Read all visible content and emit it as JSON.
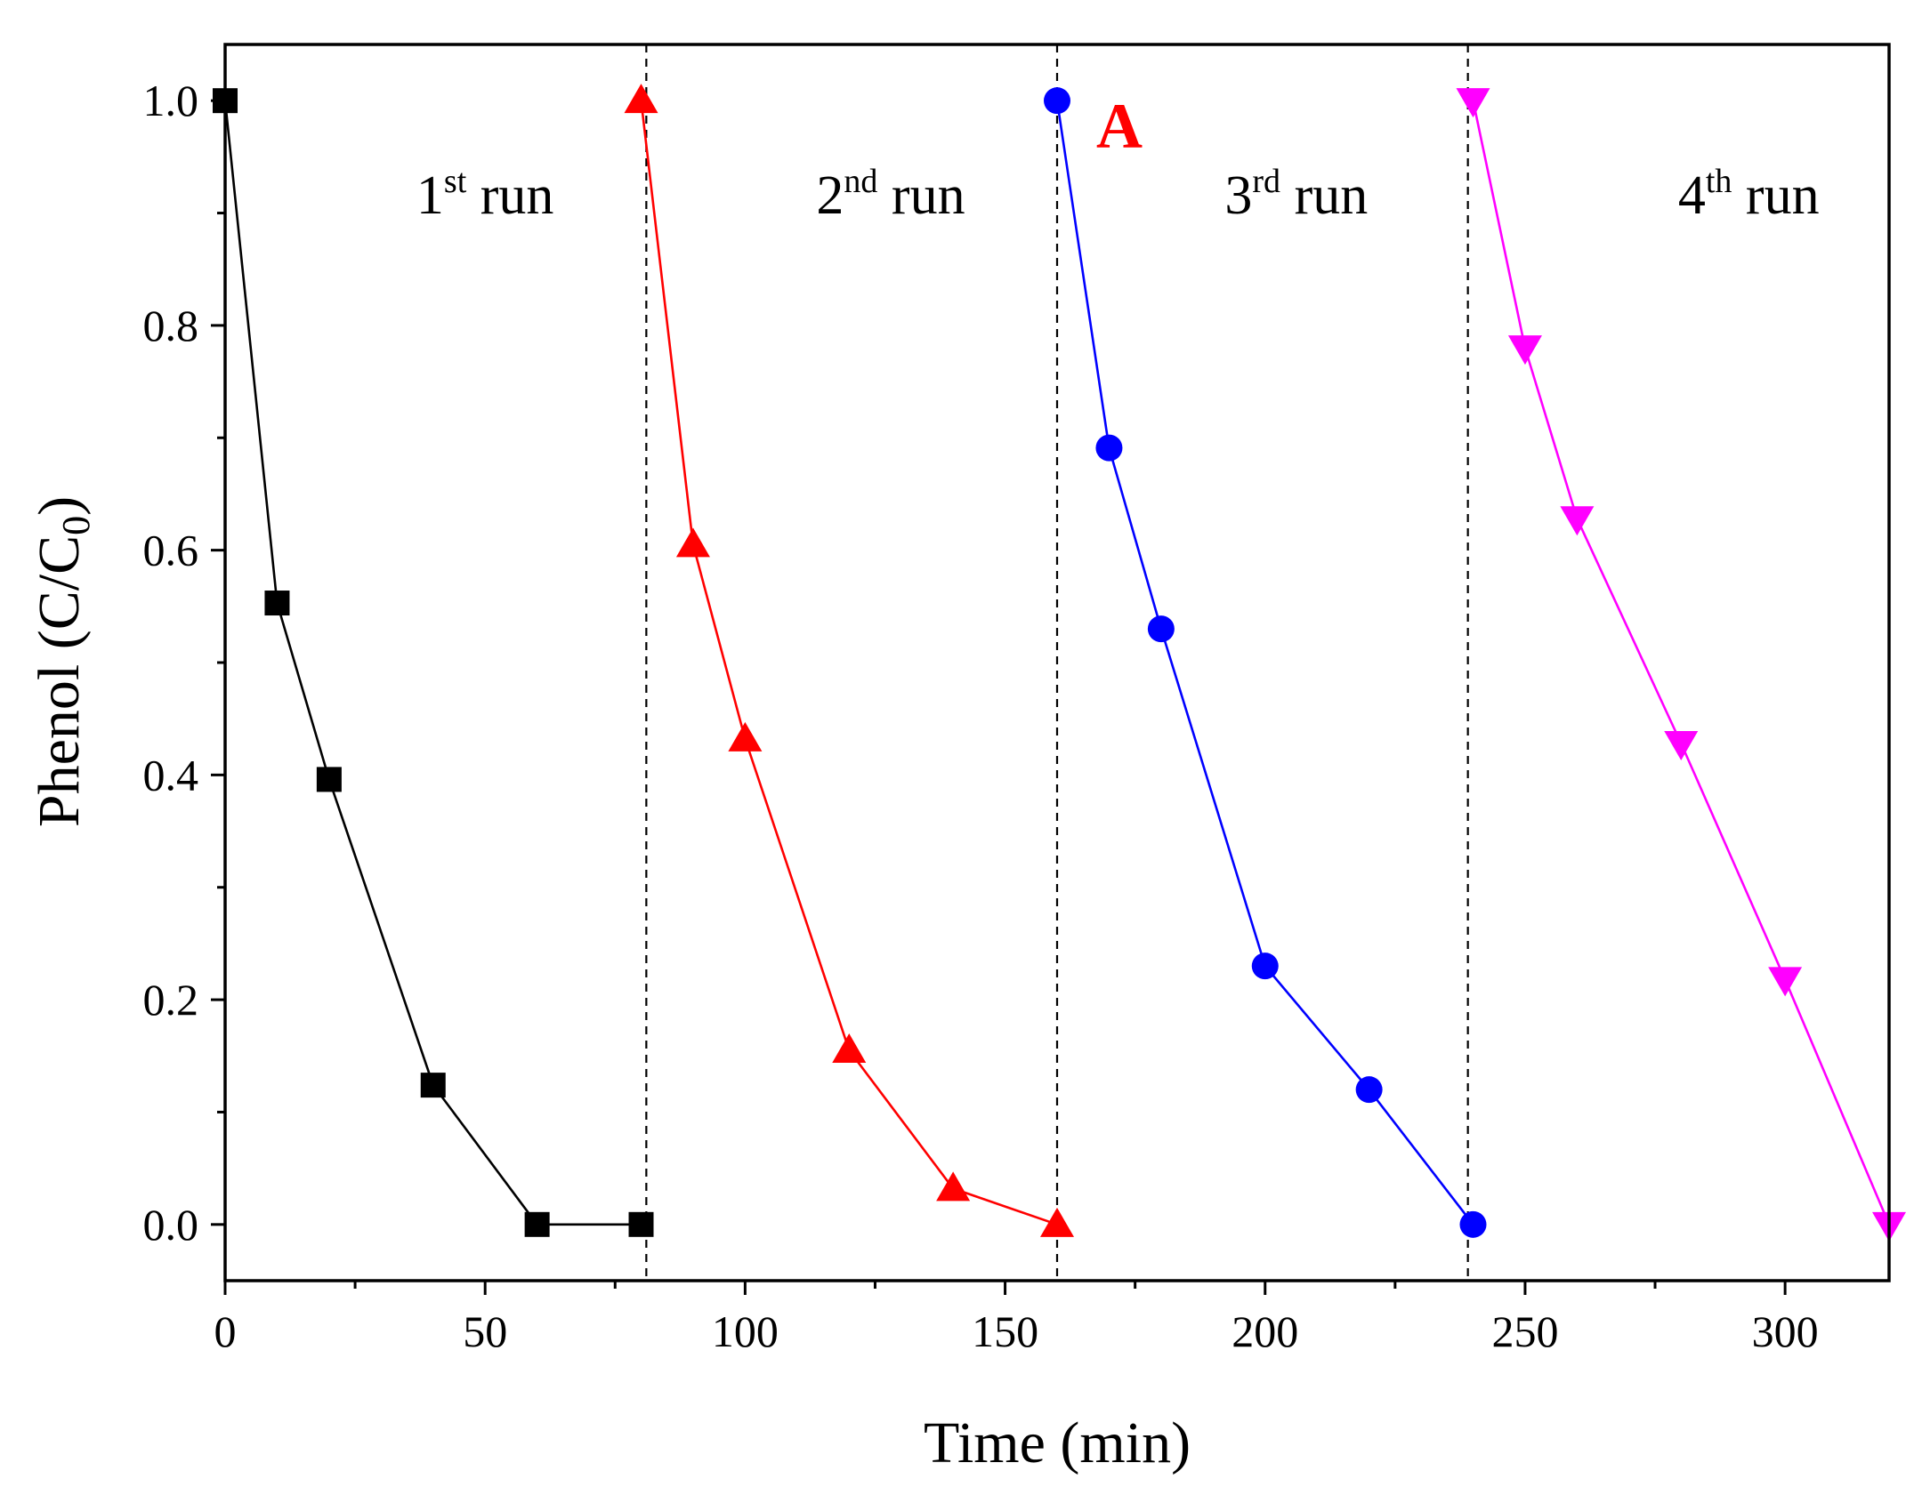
{
  "chart_data": {
    "type": "line",
    "title": "",
    "panel_label": "A",
    "xlabel": "Time (min)",
    "ylabel": {
      "main": "Phenol (C/C",
      "sub": "0",
      "close": ")"
    },
    "xlim": [
      0,
      320
    ],
    "ylim": [
      -0.05,
      1.05
    ],
    "x_ticks": [
      0,
      50,
      100,
      150,
      200,
      250,
      300
    ],
    "x_tick_labels": [
      "0",
      "50",
      "100",
      "150",
      "200",
      "250",
      "300"
    ],
    "x_minor_ticks": [
      25,
      75,
      125,
      175,
      225,
      275
    ],
    "y_ticks": [
      0.0,
      0.2,
      0.4,
      0.6,
      0.8,
      1.0
    ],
    "y_tick_labels": [
      "0.0",
      "0.2",
      "0.4",
      "0.6",
      "0.8",
      "1.0"
    ],
    "y_minor_ticks": [
      0.1,
      0.3,
      0.5,
      0.7,
      0.9
    ],
    "grid": false,
    "legend": "none",
    "separators_x": [
      81,
      160,
      239
    ],
    "run_labels": [
      {
        "num": "1",
        "sup": "st",
        "text": " run",
        "x": 50
      },
      {
        "num": "2",
        "sup": "nd",
        "text": " run",
        "x": 128
      },
      {
        "num": "3",
        "sup": "rd",
        "text": " run",
        "x": 206
      },
      {
        "num": "4",
        "sup": "th",
        "text": " run",
        "x": 293
      }
    ],
    "series": [
      {
        "name": "1st run",
        "color": "#000000",
        "marker": "square",
        "x": [
          0,
          10,
          20,
          40,
          60,
          80
        ],
        "y": [
          1.0,
          0.553,
          0.396,
          0.124,
          0.0,
          0.0
        ]
      },
      {
        "name": "2nd run",
        "color": "#ff0000",
        "marker": "triangle-up",
        "x": [
          80,
          90,
          100,
          120,
          140,
          160
        ],
        "y": [
          1.0,
          0.605,
          0.432,
          0.155,
          0.032,
          0.0
        ]
      },
      {
        "name": "3rd run",
        "color": "#0000ff",
        "marker": "circle",
        "x": [
          160,
          170,
          180,
          200,
          220,
          240
        ],
        "y": [
          1.0,
          0.691,
          0.53,
          0.23,
          0.12,
          0.0
        ]
      },
      {
        "name": "4th run",
        "color": "#ff00ff",
        "marker": "triangle-down",
        "x": [
          240,
          250,
          260,
          280,
          300,
          320
        ],
        "y": [
          1.0,
          0.78,
          0.628,
          0.428,
          0.218,
          0.0
        ]
      }
    ]
  }
}
